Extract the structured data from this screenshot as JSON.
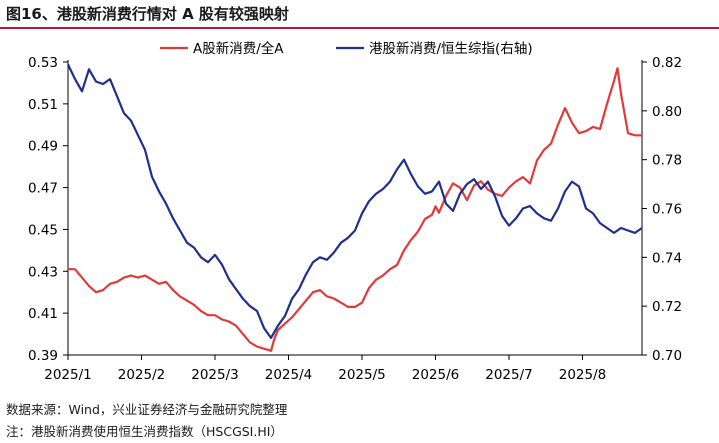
{
  "header": {
    "title": "图16、港股新消费行情对 A 股有较强映射"
  },
  "footer": {
    "source": "数据来源：Wind，兴业证券经济与金融研究院整理",
    "note": "注：港股新消费使用恒生消费指数（HSCGSI.HI）"
  },
  "colors": {
    "series_a": "#e03a3a",
    "series_b": "#1f2f8f",
    "axis": "#000000"
  },
  "chart_data": {
    "type": "line",
    "title": "",
    "legend_position": "top",
    "grid": false,
    "x_ticks": [
      "2025/1",
      "2025/2",
      "2025/3",
      "2025/4",
      "2025/5",
      "2025/6",
      "2025/7",
      "2025/8"
    ],
    "x_range": [
      0,
      164
    ],
    "x_tick_positions": [
      0,
      21,
      42,
      63,
      84,
      105,
      126,
      147
    ],
    "y_left": {
      "ticks": [
        "0.53",
        "0.51",
        "0.49",
        "0.47",
        "0.45",
        "0.43",
        "0.41",
        "0.39"
      ],
      "ylim": [
        0.39,
        0.53
      ]
    },
    "y_right": {
      "ticks": [
        "0.82",
        "0.80",
        "0.78",
        "0.76",
        "0.74",
        "0.72",
        "0.70"
      ],
      "ylim": [
        0.7,
        0.82
      ]
    },
    "series": [
      {
        "name": "A股新消费/全A",
        "axis": "left",
        "color": "#e03a3a",
        "points": [
          [
            0,
            0.431
          ],
          [
            2,
            0.431
          ],
          [
            4,
            0.427
          ],
          [
            6,
            0.423
          ],
          [
            8,
            0.42
          ],
          [
            10,
            0.421
          ],
          [
            12,
            0.424
          ],
          [
            14,
            0.425
          ],
          [
            16,
            0.427
          ],
          [
            18,
            0.428
          ],
          [
            20,
            0.427
          ],
          [
            22,
            0.428
          ],
          [
            24,
            0.426
          ],
          [
            26,
            0.424
          ],
          [
            28,
            0.425
          ],
          [
            30,
            0.421
          ],
          [
            32,
            0.418
          ],
          [
            34,
            0.416
          ],
          [
            36,
            0.414
          ],
          [
            38,
            0.411
          ],
          [
            40,
            0.409
          ],
          [
            42,
            0.409
          ],
          [
            44,
            0.407
          ],
          [
            46,
            0.406
          ],
          [
            48,
            0.404
          ],
          [
            50,
            0.4
          ],
          [
            52,
            0.396
          ],
          [
            54,
            0.394
          ],
          [
            56,
            0.393
          ],
          [
            58,
            0.392
          ],
          [
            59,
            0.398
          ],
          [
            60,
            0.402
          ],
          [
            62,
            0.405
          ],
          [
            64,
            0.408
          ],
          [
            66,
            0.412
          ],
          [
            68,
            0.416
          ],
          [
            70,
            0.42
          ],
          [
            72,
            0.421
          ],
          [
            74,
            0.418
          ],
          [
            76,
            0.417
          ],
          [
            78,
            0.415
          ],
          [
            80,
            0.413
          ],
          [
            82,
            0.413
          ],
          [
            84,
            0.415
          ],
          [
            86,
            0.422
          ],
          [
            88,
            0.426
          ],
          [
            90,
            0.428
          ],
          [
            92,
            0.431
          ],
          [
            94,
            0.433
          ],
          [
            96,
            0.44
          ],
          [
            98,
            0.445
          ],
          [
            100,
            0.449
          ],
          [
            102,
            0.455
          ],
          [
            104,
            0.457
          ],
          [
            105,
            0.461
          ],
          [
            106,
            0.458
          ],
          [
            108,
            0.466
          ],
          [
            110,
            0.472
          ],
          [
            112,
            0.47
          ],
          [
            114,
            0.464
          ],
          [
            116,
            0.471
          ],
          [
            118,
            0.473
          ],
          [
            120,
            0.469
          ],
          [
            122,
            0.467
          ],
          [
            124,
            0.466
          ],
          [
            126,
            0.47
          ],
          [
            128,
            0.473
          ],
          [
            130,
            0.475
          ],
          [
            132,
            0.472
          ],
          [
            134,
            0.483
          ],
          [
            136,
            0.488
          ],
          [
            138,
            0.491
          ],
          [
            140,
            0.5
          ],
          [
            142,
            0.508
          ],
          [
            144,
            0.501
          ],
          [
            146,
            0.496
          ],
          [
            148,
            0.497
          ],
          [
            150,
            0.499
          ],
          [
            152,
            0.498
          ],
          [
            154,
            0.51
          ],
          [
            156,
            0.521
          ],
          [
            157,
            0.527
          ],
          [
            158,
            0.515
          ],
          [
            160,
            0.496
          ],
          [
            162,
            0.495
          ],
          [
            164,
            0.495
          ]
        ]
      },
      {
        "name": "港股新消费/恒生综指(右轴)",
        "axis": "right",
        "color": "#1f2f8f",
        "points": [
          [
            0,
            0.819
          ],
          [
            2,
            0.813
          ],
          [
            4,
            0.808
          ],
          [
            6,
            0.817
          ],
          [
            8,
            0.812
          ],
          [
            10,
            0.811
          ],
          [
            12,
            0.813
          ],
          [
            14,
            0.806
          ],
          [
            16,
            0.799
          ],
          [
            18,
            0.796
          ],
          [
            20,
            0.79
          ],
          [
            22,
            0.784
          ],
          [
            24,
            0.773
          ],
          [
            26,
            0.767
          ],
          [
            28,
            0.762
          ],
          [
            30,
            0.756
          ],
          [
            32,
            0.751
          ],
          [
            34,
            0.746
          ],
          [
            36,
            0.744
          ],
          [
            38,
            0.74
          ],
          [
            40,
            0.738
          ],
          [
            42,
            0.741
          ],
          [
            44,
            0.737
          ],
          [
            46,
            0.731
          ],
          [
            48,
            0.727
          ],
          [
            50,
            0.723
          ],
          [
            52,
            0.72
          ],
          [
            54,
            0.718
          ],
          [
            56,
            0.711
          ],
          [
            58,
            0.707
          ],
          [
            60,
            0.712
          ],
          [
            62,
            0.716
          ],
          [
            64,
            0.723
          ],
          [
            66,
            0.727
          ],
          [
            68,
            0.733
          ],
          [
            70,
            0.738
          ],
          [
            72,
            0.74
          ],
          [
            74,
            0.739
          ],
          [
            76,
            0.742
          ],
          [
            78,
            0.746
          ],
          [
            80,
            0.748
          ],
          [
            82,
            0.751
          ],
          [
            84,
            0.758
          ],
          [
            86,
            0.763
          ],
          [
            88,
            0.766
          ],
          [
            90,
            0.768
          ],
          [
            92,
            0.771
          ],
          [
            94,
            0.776
          ],
          [
            96,
            0.78
          ],
          [
            98,
            0.774
          ],
          [
            100,
            0.769
          ],
          [
            102,
            0.766
          ],
          [
            104,
            0.767
          ],
          [
            106,
            0.771
          ],
          [
            108,
            0.762
          ],
          [
            110,
            0.759
          ],
          [
            112,
            0.766
          ],
          [
            114,
            0.77
          ],
          [
            116,
            0.772
          ],
          [
            118,
            0.768
          ],
          [
            120,
            0.771
          ],
          [
            122,
            0.765
          ],
          [
            124,
            0.757
          ],
          [
            126,
            0.753
          ],
          [
            128,
            0.756
          ],
          [
            130,
            0.76
          ],
          [
            132,
            0.761
          ],
          [
            134,
            0.758
          ],
          [
            136,
            0.756
          ],
          [
            138,
            0.755
          ],
          [
            140,
            0.76
          ],
          [
            142,
            0.767
          ],
          [
            144,
            0.771
          ],
          [
            146,
            0.769
          ],
          [
            148,
            0.76
          ],
          [
            150,
            0.758
          ],
          [
            152,
            0.754
          ],
          [
            154,
            0.752
          ],
          [
            156,
            0.75
          ],
          [
            158,
            0.752
          ],
          [
            160,
            0.751
          ],
          [
            162,
            0.75
          ],
          [
            164,
            0.752
          ]
        ]
      }
    ]
  }
}
